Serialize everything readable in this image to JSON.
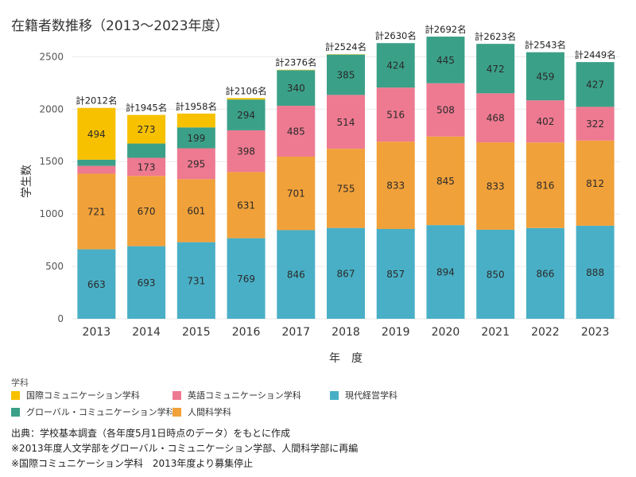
{
  "title": "在籍者数推移（2013〜2023年度）",
  "colors": {
    "kokusai": "#F7C100",
    "eigo": "#EE7A91",
    "gendai": "#49AFC6",
    "global": "#3BA088",
    "ningen": "#F1A13A",
    "grid": "#EAEAEA",
    "text": "#333333"
  },
  "chart_data": {
    "type": "bar",
    "stacked": true,
    "xlabel": "年　度",
    "ylabel": "学生数",
    "ylim": [
      0,
      2700
    ],
    "yticks": [
      0,
      500,
      1000,
      1500,
      2000,
      2500
    ],
    "grid": true,
    "categories": [
      "2013",
      "2014",
      "2015",
      "2016",
      "2017",
      "2018",
      "2019",
      "2020",
      "2021",
      "2022",
      "2023"
    ],
    "totals": [
      "計2012名",
      "計1945名",
      "計1958名",
      "計2106名",
      "計2376名",
      "計2524名",
      "計2630名",
      "計2692名",
      "計2623名",
      "計2543名",
      "計2449名"
    ],
    "series": [
      {
        "name": "現代経営学科",
        "color_key": "gendai",
        "values": [
          663,
          693,
          731,
          769,
          846,
          867,
          857,
          894,
          850,
          866,
          888
        ],
        "labels": [
          "663",
          "693",
          "731",
          "769",
          "846",
          "867",
          "857",
          "894",
          "850",
          "866",
          "888"
        ]
      },
      {
        "name": "人間科学科",
        "color_key": "ningen",
        "values": [
          721,
          670,
          601,
          631,
          701,
          755,
          833,
          845,
          833,
          816,
          812
        ],
        "labels": [
          "721",
          "670",
          "601",
          "631",
          "701",
          "755",
          "833",
          "845",
          "833",
          "816",
          "812"
        ]
      },
      {
        "name": "英語コミュニケーション学科",
        "color_key": "eigo",
        "values": [
          75,
          173,
          295,
          398,
          485,
          514,
          516,
          508,
          468,
          402,
          322
        ],
        "labels": [
          "",
          "173",
          "295",
          "398",
          "485",
          "514",
          "516",
          "508",
          "468",
          "402",
          "322"
        ]
      },
      {
        "name": "グローバル・コミュニケーション学科",
        "color_key": "global",
        "values": [
          59,
          136,
          199,
          294,
          340,
          385,
          424,
          445,
          472,
          459,
          427
        ],
        "labels": [
          "",
          "",
          "199",
          "294",
          "340",
          "385",
          "424",
          "445",
          "472",
          "459",
          "427"
        ]
      },
      {
        "name": "国際コミュニケーション学科",
        "color_key": "kokusai",
        "values": [
          494,
          273,
          132,
          14,
          4,
          3,
          0,
          0,
          0,
          0,
          0
        ],
        "labels": [
          "494",
          "273",
          "",
          "",
          "",
          "",
          "",
          "",
          "",
          "",
          ""
        ]
      }
    ]
  },
  "legend": {
    "title": "学科",
    "items": [
      {
        "label": "国際コミュニケーション学科",
        "color_key": "kokusai"
      },
      {
        "label": "英語コミュニケーション学科",
        "color_key": "eigo"
      },
      {
        "label": "現代経営学科",
        "color_key": "gendai"
      },
      {
        "label": "グローバル・コミュニケーション学科",
        "color_key": "global"
      },
      {
        "label": "人間科学科",
        "color_key": "ningen"
      }
    ]
  },
  "notes": [
    "出典：学校基本調査（各年度5月1日時点のデータ）をもとに作成",
    "※2013年度人文学部をグローバル・コミュニケーション学部、人間科学部に再編",
    "※国際コミュニケーション学科　2013年度より募集停止"
  ]
}
